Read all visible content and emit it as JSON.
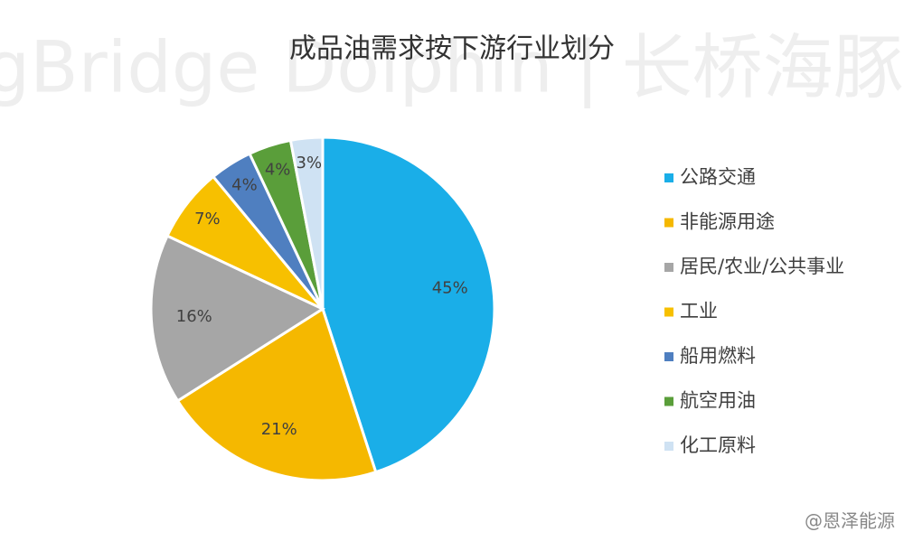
{
  "chart_data": {
    "type": "pie",
    "title": "成品油需求按下游行业划分",
    "watermark": "LongBridge Dolphin | 长桥海豚投研",
    "credit": "@恩泽能源",
    "categories": [
      "公路交通",
      "非能源用途",
      "居民/农业/公共事业",
      "工业",
      "船用燃料",
      "航空用油",
      "化工原料"
    ],
    "values": [
      45,
      21,
      16,
      7,
      4,
      4,
      3
    ],
    "value_labels": [
      "45%",
      "21%",
      "16%",
      "7%",
      "4%",
      "4%",
      "3%"
    ],
    "colors": [
      "#1aaee8",
      "#f5b800",
      "#a6a6a6",
      "#f7c000",
      "#4f7fc0",
      "#5a9e3a",
      "#cfe2f3"
    ],
    "legend": "right"
  }
}
